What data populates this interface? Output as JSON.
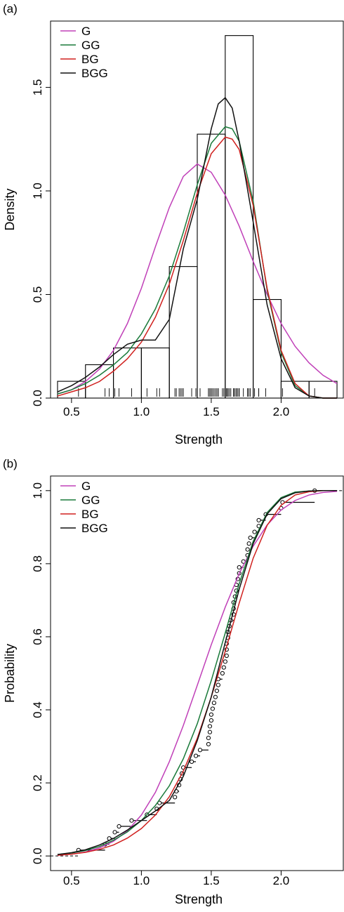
{
  "chart_data": [
    {
      "panel_label": "(a)",
      "type": "histogram",
      "xlabel": "Strength",
      "ylabel": "Density",
      "xlim": [
        0.35,
        2.45
      ],
      "ylim": [
        0,
        1.82
      ],
      "x_ticks": [
        0.5,
        1.0,
        1.5,
        2.0
      ],
      "x_tick_labels": [
        "0.5",
        "1.0",
        "1.5",
        "2.0"
      ],
      "y_ticks": [
        0.0,
        0.5,
        1.0,
        1.5
      ],
      "y_tick_labels": [
        "0.0",
        "0.5",
        "1.0",
        "1.5"
      ],
      "legend_position": "top-left",
      "histogram": {
        "bins": [
          {
            "x0": 0.4,
            "x1": 0.6,
            "density": 0.081
          },
          {
            "x0": 0.6,
            "x1": 0.8,
            "density": 0.161
          },
          {
            "x0": 0.8,
            "x1": 1.0,
            "density": 0.242
          },
          {
            "x0": 1.0,
            "x1": 1.2,
            "density": 0.242
          },
          {
            "x0": 1.2,
            "x1": 1.4,
            "density": 0.635
          },
          {
            "x0": 1.4,
            "x1": 1.6,
            "density": 1.274
          },
          {
            "x0": 1.6,
            "x1": 1.8,
            "density": 1.75
          },
          {
            "x0": 1.8,
            "x1": 2.0,
            "density": 0.476
          },
          {
            "x0": 2.0,
            "x1": 2.2,
            "density": 0.081
          },
          {
            "x0": 2.2,
            "x1": 2.4,
            "density": 0.081
          }
        ]
      },
      "rug": [
        0.55,
        0.74,
        0.77,
        0.81,
        0.84,
        0.93,
        1.04,
        1.11,
        1.13,
        1.24,
        1.25,
        1.27,
        1.28,
        1.29,
        1.3,
        1.36,
        1.39,
        1.42,
        1.48,
        1.48,
        1.49,
        1.49,
        1.5,
        1.5,
        1.51,
        1.52,
        1.53,
        1.54,
        1.55,
        1.55,
        1.58,
        1.59,
        1.6,
        1.61,
        1.61,
        1.61,
        1.62,
        1.62,
        1.63,
        1.64,
        1.66,
        1.66,
        1.66,
        1.67,
        1.68,
        1.68,
        1.69,
        1.7,
        1.7,
        1.73,
        1.76,
        1.76,
        1.77,
        1.78,
        1.81,
        1.84,
        1.84,
        1.89,
        2.0,
        2.01,
        2.24
      ],
      "series": [
        {
          "name": "G",
          "color": "#C040B8",
          "x": [
            0.4,
            0.5,
            0.6,
            0.7,
            0.8,
            0.9,
            1.0,
            1.1,
            1.2,
            1.3,
            1.4,
            1.5,
            1.6,
            1.7,
            1.8,
            1.9,
            2.0,
            2.1,
            2.2,
            2.3,
            2.4
          ],
          "y": [
            0.02,
            0.04,
            0.08,
            0.14,
            0.23,
            0.36,
            0.53,
            0.73,
            0.92,
            1.07,
            1.13,
            1.09,
            0.98,
            0.83,
            0.66,
            0.5,
            0.36,
            0.25,
            0.17,
            0.11,
            0.07
          ]
        },
        {
          "name": "GG",
          "color": "#1A7A3A",
          "x": [
            0.4,
            0.5,
            0.6,
            0.7,
            0.8,
            0.9,
            1.0,
            1.1,
            1.2,
            1.3,
            1.4,
            1.5,
            1.6,
            1.65,
            1.7,
            1.8,
            1.9,
            2.0,
            2.1,
            2.2,
            2.3,
            2.4
          ],
          "y": [
            0.02,
            0.04,
            0.07,
            0.11,
            0.16,
            0.22,
            0.31,
            0.43,
            0.59,
            0.8,
            1.03,
            1.23,
            1.31,
            1.3,
            1.24,
            0.95,
            0.52,
            0.22,
            0.06,
            0.01,
            0.0,
            0.0
          ]
        },
        {
          "name": "BG",
          "color": "#D0201E",
          "x": [
            0.4,
            0.5,
            0.6,
            0.7,
            0.8,
            0.9,
            1.0,
            1.1,
            1.2,
            1.3,
            1.4,
            1.5,
            1.6,
            1.65,
            1.7,
            1.8,
            1.9,
            2.0,
            2.1,
            2.2,
            2.3,
            2.4
          ],
          "y": [
            0.01,
            0.03,
            0.05,
            0.08,
            0.13,
            0.19,
            0.27,
            0.39,
            0.55,
            0.76,
            0.99,
            1.18,
            1.26,
            1.25,
            1.2,
            0.93,
            0.53,
            0.23,
            0.07,
            0.01,
            0.0,
            0.0
          ]
        },
        {
          "name": "BGG",
          "color": "#111111",
          "x": [
            0.4,
            0.5,
            0.6,
            0.7,
            0.8,
            0.9,
            1.0,
            1.1,
            1.2,
            1.25,
            1.3,
            1.4,
            1.5,
            1.55,
            1.6,
            1.65,
            1.7,
            1.8,
            1.9,
            2.0,
            2.1,
            2.2,
            2.3,
            2.4
          ],
          "y": [
            0.03,
            0.06,
            0.1,
            0.15,
            0.21,
            0.26,
            0.28,
            0.28,
            0.38,
            0.55,
            0.72,
            0.96,
            1.3,
            1.42,
            1.45,
            1.4,
            1.24,
            0.85,
            0.45,
            0.19,
            0.05,
            0.01,
            0.0,
            0.0
          ]
        }
      ]
    },
    {
      "panel_label": "(b)",
      "type": "line",
      "xlabel": "Strength",
      "ylabel": "Probability",
      "xlim": [
        0.35,
        2.45
      ],
      "ylim": [
        -0.04,
        1.04
      ],
      "x_ticks": [
        0.5,
        1.0,
        1.5,
        2.0
      ],
      "x_tick_labels": [
        "0.5",
        "1.0",
        "1.5",
        "2.0"
      ],
      "y_ticks": [
        0.0,
        0.2,
        0.4,
        0.6,
        0.8,
        1.0
      ],
      "y_tick_labels": [
        "0.0",
        "0.2",
        "0.4",
        "0.6",
        "0.8",
        "1.0"
      ],
      "legend_position": "top-left",
      "ecdf_points": {
        "x": [
          0.55,
          0.74,
          0.77,
          0.81,
          0.84,
          0.93,
          1.04,
          1.11,
          1.13,
          1.24,
          1.25,
          1.27,
          1.28,
          1.29,
          1.3,
          1.36,
          1.39,
          1.42,
          1.48,
          1.48,
          1.49,
          1.49,
          1.5,
          1.5,
          1.51,
          1.52,
          1.53,
          1.54,
          1.55,
          1.55,
          1.58,
          1.59,
          1.6,
          1.61,
          1.61,
          1.61,
          1.62,
          1.62,
          1.63,
          1.64,
          1.66,
          1.66,
          1.66,
          1.67,
          1.68,
          1.68,
          1.69,
          1.7,
          1.7,
          1.73,
          1.76,
          1.76,
          1.77,
          1.78,
          1.81,
          1.84,
          1.84,
          1.89,
          2.0,
          2.01,
          2.24
        ],
        "y": [
          0.016,
          0.032,
          0.048,
          0.065,
          0.081,
          0.097,
          0.113,
          0.129,
          0.145,
          0.161,
          0.177,
          0.194,
          0.21,
          0.226,
          0.242,
          0.258,
          0.274,
          0.29,
          0.306,
          0.323,
          0.339,
          0.355,
          0.371,
          0.387,
          0.403,
          0.419,
          0.435,
          0.452,
          0.468,
          0.484,
          0.5,
          0.516,
          0.532,
          0.548,
          0.565,
          0.581,
          0.597,
          0.613,
          0.629,
          0.645,
          0.661,
          0.677,
          0.694,
          0.71,
          0.726,
          0.742,
          0.758,
          0.774,
          0.79,
          0.806,
          0.823,
          0.839,
          0.855,
          0.871,
          0.887,
          0.903,
          0.919,
          0.935,
          0.952,
          0.968,
          1.0
        ]
      },
      "series": [
        {
          "name": "G",
          "color": "#C040B8",
          "x": [
            0.4,
            0.5,
            0.6,
            0.7,
            0.8,
            0.9,
            1.0,
            1.1,
            1.2,
            1.3,
            1.4,
            1.5,
            1.6,
            1.7,
            1.8,
            1.9,
            2.0,
            2.1,
            2.2,
            2.3,
            2.4
          ],
          "y": [
            0.002,
            0.005,
            0.011,
            0.022,
            0.04,
            0.069,
            0.112,
            0.174,
            0.258,
            0.357,
            0.467,
            0.578,
            0.681,
            0.773,
            0.848,
            0.906,
            0.947,
            0.973,
            0.988,
            0.995,
            0.998
          ]
        },
        {
          "name": "GG",
          "color": "#1A7A3A",
          "x": [
            0.4,
            0.5,
            0.6,
            0.7,
            0.8,
            0.9,
            1.0,
            1.1,
            1.2,
            1.3,
            1.4,
            1.5,
            1.6,
            1.7,
            1.8,
            1.9,
            2.0,
            2.1,
            2.2,
            2.3,
            2.4
          ],
          "y": [
            0.004,
            0.008,
            0.015,
            0.026,
            0.043,
            0.066,
            0.097,
            0.138,
            0.192,
            0.266,
            0.362,
            0.48,
            0.61,
            0.745,
            0.861,
            0.94,
            0.981,
            0.996,
            0.999,
            1.0,
            1.0
          ]
        },
        {
          "name": "BG",
          "color": "#D0201E",
          "x": [
            0.4,
            0.5,
            0.6,
            0.7,
            0.8,
            0.9,
            1.0,
            1.1,
            1.2,
            1.3,
            1.4,
            1.5,
            1.6,
            1.7,
            1.8,
            1.9,
            2.0,
            2.1,
            2.2,
            2.3,
            2.4
          ],
          "y": [
            0.002,
            0.005,
            0.01,
            0.018,
            0.03,
            0.049,
            0.075,
            0.112,
            0.162,
            0.232,
            0.322,
            0.435,
            0.56,
            0.692,
            0.815,
            0.905,
            0.96,
            0.988,
            0.997,
            1.0,
            1.0
          ]
        },
        {
          "name": "BGG",
          "color": "#111111",
          "x": [
            0.4,
            0.5,
            0.6,
            0.7,
            0.8,
            0.9,
            1.0,
            1.1,
            1.2,
            1.3,
            1.4,
            1.5,
            1.6,
            1.7,
            1.8,
            1.9,
            2.0,
            2.1,
            2.2,
            2.3,
            2.4
          ],
          "y": [
            0.004,
            0.009,
            0.017,
            0.03,
            0.048,
            0.071,
            0.097,
            0.123,
            0.152,
            0.218,
            0.316,
            0.435,
            0.584,
            0.73,
            0.855,
            0.936,
            0.978,
            0.994,
            0.999,
            1.0,
            1.0
          ]
        }
      ]
    }
  ]
}
